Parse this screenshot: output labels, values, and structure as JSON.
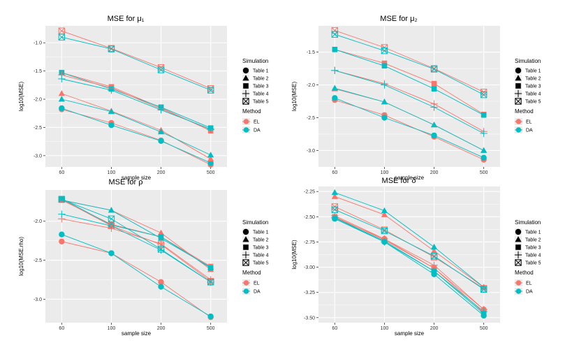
{
  "colors": {
    "EL": "#F8766D",
    "DA": "#00BFC4",
    "panel": "#EBEBEB",
    "grid": "#FFFFFF"
  },
  "chart_data": [
    {
      "type": "line",
      "title": "MSE for  μ₁",
      "xlabel": "sample size",
      "ylabel": "log10(MSE)",
      "categories": [
        "60",
        "100",
        "200",
        "500"
      ],
      "ylim": [
        -3.2,
        -0.7
      ],
      "yticks": [
        -1.0,
        -1.5,
        -2.0,
        -2.5,
        -3.0
      ],
      "ytick_labels": [
        "-1.0",
        "-1.5",
        "-2.0",
        "-2.5",
        "-3.0"
      ],
      "series": [
        {
          "name": "Table 1 EL",
          "table": 1,
          "method": "EL",
          "values": [
            -2.18,
            -2.42,
            -2.73,
            -3.16
          ]
        },
        {
          "name": "Table 1 DA",
          "table": 1,
          "method": "DA",
          "values": [
            -2.16,
            -2.46,
            -2.74,
            -3.13
          ]
        },
        {
          "name": "Table 2 EL",
          "table": 2,
          "method": "EL",
          "values": [
            -1.9,
            -2.21,
            -2.55,
            -3.06
          ]
        },
        {
          "name": "Table 2 DA",
          "table": 2,
          "method": "DA",
          "values": [
            -2.0,
            -2.22,
            -2.58,
            -2.99
          ]
        },
        {
          "name": "Table 3 EL",
          "table": 3,
          "method": "EL",
          "values": [
            -1.53,
            -1.78,
            -2.15,
            -2.56
          ]
        },
        {
          "name": "Table 3 DA",
          "table": 3,
          "method": "DA",
          "values": [
            -1.53,
            -1.82,
            -2.14,
            -2.51
          ]
        },
        {
          "name": "Table 4 EL",
          "table": 4,
          "method": "EL",
          "values": [
            -1.57,
            -1.8,
            -2.17,
            -2.54
          ]
        },
        {
          "name": "Table 4 DA",
          "table": 4,
          "method": "DA",
          "values": [
            -1.64,
            -1.84,
            -2.19,
            -2.53
          ]
        },
        {
          "name": "Table 5 EL",
          "table": 5,
          "method": "EL",
          "values": [
            -0.79,
            -1.1,
            -1.44,
            -1.81
          ]
        },
        {
          "name": "Table 5 DA",
          "table": 5,
          "method": "DA",
          "values": [
            -0.9,
            -1.11,
            -1.48,
            -1.84
          ]
        }
      ]
    },
    {
      "type": "line",
      "title": "MSE for  μ₂",
      "xlabel": "sample size",
      "ylabel": "log10(MSE)",
      "categories": [
        "60",
        "100",
        "200",
        "500"
      ],
      "ylim": [
        -3.25,
        -1.1
      ],
      "yticks": [
        -1.5,
        -2.0,
        -2.5,
        -3.0
      ],
      "ytick_labels": [
        "-1.5",
        "-2.0",
        "-2.5",
        "-3.0"
      ],
      "series": [
        {
          "name": "Table 1 EL",
          "table": 1,
          "method": "EL",
          "values": [
            -2.23,
            -2.46,
            -2.79,
            -3.14
          ]
        },
        {
          "name": "Table 1 DA",
          "table": 1,
          "method": "DA",
          "values": [
            -2.2,
            -2.5,
            -2.77,
            -3.11
          ]
        },
        {
          "name": "Table 2 EL",
          "table": 2,
          "method": "EL",
          "values": [
            -2.06,
            -2.26,
            -2.61,
            -3.0
          ]
        },
        {
          "name": "Table 2 DA",
          "table": 2,
          "method": "DA",
          "values": [
            -2.05,
            -2.26,
            -2.61,
            -3.0
          ]
        },
        {
          "name": "Table 3 EL",
          "table": 3,
          "method": "EL",
          "values": [
            -1.46,
            -1.67,
            -1.98,
            -2.45
          ]
        },
        {
          "name": "Table 3 DA",
          "table": 3,
          "method": "DA",
          "values": [
            -1.46,
            -1.71,
            -2.06,
            -2.46
          ]
        },
        {
          "name": "Table 4 EL",
          "table": 4,
          "method": "EL",
          "values": [
            -1.78,
            -1.98,
            -2.29,
            -2.71
          ]
        },
        {
          "name": "Table 4 DA",
          "table": 4,
          "method": "DA",
          "values": [
            -1.78,
            -2.0,
            -2.34,
            -2.74
          ]
        },
        {
          "name": "Table 5 EL",
          "table": 5,
          "method": "EL",
          "values": [
            -1.17,
            -1.43,
            -1.75,
            -2.11
          ]
        },
        {
          "name": "Table 5 DA",
          "table": 5,
          "method": "DA",
          "values": [
            -1.23,
            -1.48,
            -1.76,
            -2.15
          ]
        }
      ]
    },
    {
      "type": "line",
      "title": "MSE for  ρ",
      "xlabel": "sample size",
      "ylabel": "log10(MSE.rho)",
      "categories": [
        "60",
        "100",
        "200",
        "500"
      ],
      "ylim": [
        -3.3,
        -1.6
      ],
      "yticks": [
        -2.0,
        -2.5,
        -3.0
      ],
      "ytick_labels": [
        "-2.0",
        "-2.5",
        "-3.0"
      ],
      "series": [
        {
          "name": "Table 1 EL",
          "table": 1,
          "method": "EL",
          "values": [
            -2.26,
            -2.41,
            -2.78,
            -3.23
          ]
        },
        {
          "name": "Table 1 DA",
          "table": 1,
          "method": "DA",
          "values": [
            -2.17,
            -2.41,
            -2.84,
            -3.22
          ]
        },
        {
          "name": "Table 2 EL",
          "table": 2,
          "method": "EL",
          "values": [
            -1.73,
            -1.86,
            -2.15,
            -2.62
          ]
        },
        {
          "name": "Table 2 DA",
          "table": 2,
          "method": "DA",
          "values": [
            -1.73,
            -1.86,
            -2.22,
            -2.59
          ]
        },
        {
          "name": "Table 3 EL",
          "table": 3,
          "method": "EL",
          "values": [
            -1.73,
            -2.04,
            -2.2,
            -2.58
          ]
        },
        {
          "name": "Table 3 DA",
          "table": 3,
          "method": "DA",
          "values": [
            -1.71,
            -2.05,
            -2.2,
            -2.6
          ]
        },
        {
          "name": "Table 4 EL",
          "table": 4,
          "method": "EL",
          "values": [
            -1.97,
            -2.09,
            -2.29,
            -2.75
          ]
        },
        {
          "name": "Table 4 DA",
          "table": 4,
          "method": "DA",
          "values": [
            -1.91,
            -2.06,
            -2.37,
            -2.78
          ]
        },
        {
          "name": "Table 5 EL",
          "table": 5,
          "method": "EL",
          "values": [
            -1.72,
            -2.06,
            -2.3,
            -2.77
          ]
        },
        {
          "name": "Table 5 DA",
          "table": 5,
          "method": "DA",
          "values": [
            -1.72,
            -1.97,
            -2.36,
            -2.78
          ]
        }
      ]
    },
    {
      "type": "line",
      "title": "MSE for  δ",
      "xlabel": "sample size",
      "ylabel": "log10(MSE)",
      "categories": [
        "60",
        "100",
        "200",
        "500"
      ],
      "ylim": [
        -3.55,
        -2.2
      ],
      "yticks": [
        -2.25,
        -2.5,
        -2.75,
        -3.0,
        -3.25,
        -3.5
      ],
      "ytick_labels": [
        "-2.25",
        "-2.50",
        "-2.75",
        "-3.00",
        "-3.25",
        "-3.50"
      ],
      "series": [
        {
          "name": "Table 1 EL",
          "table": 1,
          "method": "EL",
          "values": [
            -2.51,
            -2.72,
            -3.01,
            -3.42
          ]
        },
        {
          "name": "Table 1 DA",
          "table": 1,
          "method": "DA",
          "values": [
            -2.52,
            -2.75,
            -3.07,
            -3.48
          ]
        },
        {
          "name": "Table 2 EL",
          "table": 2,
          "method": "EL",
          "values": [
            -2.3,
            -2.48,
            -2.84,
            -3.2
          ]
        },
        {
          "name": "Table 2 DA",
          "table": 2,
          "method": "DA",
          "values": [
            -2.26,
            -2.44,
            -2.8,
            -3.2
          ]
        },
        {
          "name": "Table 3 EL",
          "table": 3,
          "method": "EL",
          "values": [
            -2.5,
            -2.73,
            -3.01,
            -3.45
          ]
        },
        {
          "name": "Table 3 DA",
          "table": 3,
          "method": "DA",
          "values": [
            -2.51,
            -2.74,
            -3.04,
            -3.46
          ]
        },
        {
          "name": "Table 4 EL",
          "table": 4,
          "method": "EL",
          "values": [
            -2.49,
            -2.72,
            -2.98,
            -3.42
          ]
        },
        {
          "name": "Table 4 DA",
          "table": 4,
          "method": "DA",
          "values": [
            -2.51,
            -2.75,
            -3.04,
            -3.44
          ]
        },
        {
          "name": "Table 5 EL",
          "table": 5,
          "method": "EL",
          "values": [
            -2.4,
            -2.63,
            -2.9,
            -3.21
          ]
        },
        {
          "name": "Table 5 DA",
          "table": 5,
          "method": "DA",
          "values": [
            -2.43,
            -2.64,
            -2.89,
            -3.22
          ]
        }
      ]
    }
  ],
  "legend": {
    "simulation_title": "Simulation",
    "simulation_items": [
      "Table 1",
      "Table 2",
      "Table 3",
      "Table 4",
      "Table 5"
    ],
    "method_title": "Method",
    "method_items": [
      "EL",
      "DA"
    ]
  }
}
